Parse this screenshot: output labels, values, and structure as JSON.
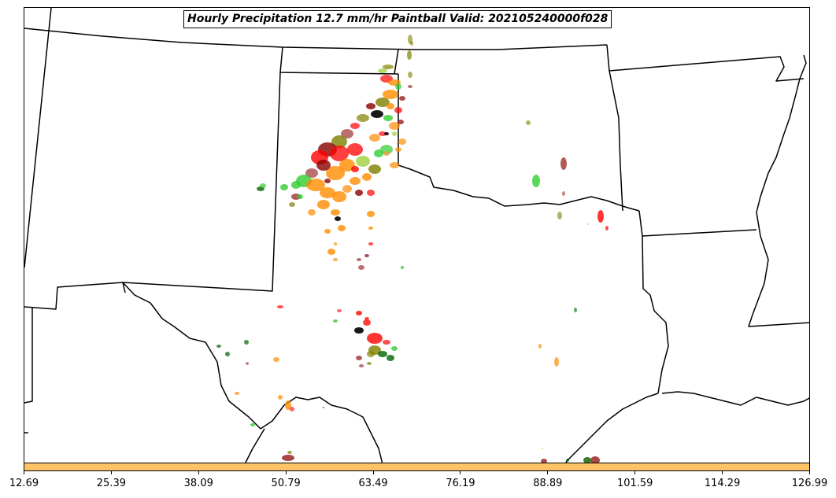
{
  "title": "Hourly Precipitation 12.7 mm/hr Paintball Valid: 202105240000f028",
  "colorbar": {
    "color": "#ffc266",
    "tick_labels": [
      "12.69",
      "25.39",
      "38.09",
      "50.79",
      "63.49",
      "76.19",
      "88.89",
      "101.59",
      "114.29",
      "126.99"
    ]
  },
  "paintball_colors": [
    "#ff0000",
    "#ff8c00",
    "#32cd32",
    "#808000",
    "#8b0000",
    "#a03232",
    "#006400",
    "#000000",
    "#e8a040",
    "#9acd32"
  ]
}
